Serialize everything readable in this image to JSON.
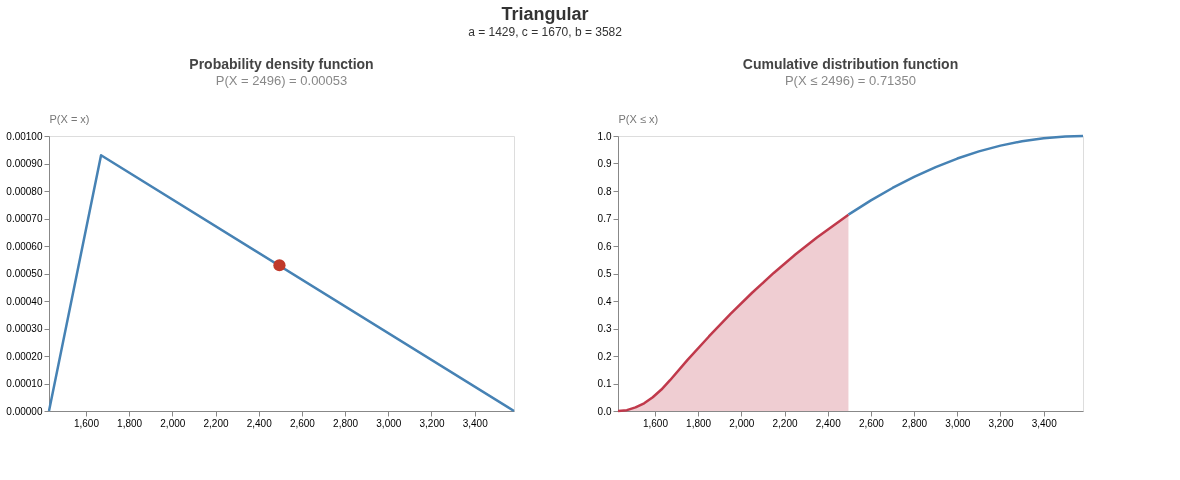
{
  "chart_data": [
    {
      "type": "line",
      "title": "Probability density function",
      "subtitle": "P(X = 2496) = 0.00053",
      "ylabel": "P(X = x)",
      "annotations": [
        "Triangular",
        "a = 1429, c = 1670, b = 3582"
      ],
      "xlim": [
        1429,
        3582
      ],
      "xticks": [
        {
          "value": 1600,
          "label": "1,600"
        },
        {
          "value": 1800,
          "label": "1,800"
        },
        {
          "value": 2000,
          "label": "2,000"
        },
        {
          "value": 2200,
          "label": "2,200"
        },
        {
          "value": 2400,
          "label": "2,400"
        },
        {
          "value": 2600,
          "label": "2,600"
        },
        {
          "value": 2800,
          "label": "2,800"
        },
        {
          "value": 3000,
          "label": "3,000"
        },
        {
          "value": 3200,
          "label": "3,200"
        },
        {
          "value": 3400,
          "label": "3,400"
        }
      ],
      "ylim": [
        0,
        0.001
      ],
      "yticks": [
        {
          "value": 0,
          "label": "0.00000"
        },
        {
          "value": 0.0001,
          "label": "0.00010"
        },
        {
          "value": 0.0002,
          "label": "0.00020"
        },
        {
          "value": 0.0003,
          "label": "0.00030"
        },
        {
          "value": 0.0004,
          "label": "0.00040"
        },
        {
          "value": 0.0005,
          "label": "0.00050"
        },
        {
          "value": 0.0006,
          "label": "0.00060"
        },
        {
          "value": 0.0007,
          "label": "0.00070"
        },
        {
          "value": 0.0008,
          "label": "0.00080"
        },
        {
          "value": 0.0009,
          "label": "0.00090"
        },
        {
          "value": 0.001,
          "label": "0.00100"
        }
      ],
      "grid": false,
      "series": [
        {
          "color": "#4682b4",
          "x": [
            1429,
            1670,
            3582
          ],
          "values": [
            0,
            0.00093,
            0
          ]
        },
        {
          "type": "scatter",
          "marker": "circle",
          "color": "#c0392b",
          "x": [
            2496
          ],
          "values": [
            0.00053
          ]
        }
      ]
    },
    {
      "type": "line",
      "title": "Cumulative distribution function",
      "subtitle": "P(X ≤ 2496) = 0.71350",
      "ylabel": "P(X ≤ x)",
      "xlim": [
        1429,
        3582
      ],
      "xticks": [
        {
          "value": 1600,
          "label": "1,600"
        },
        {
          "value": 1800,
          "label": "1,800"
        },
        {
          "value": 2000,
          "label": "2,000"
        },
        {
          "value": 2200,
          "label": "2,200"
        },
        {
          "value": 2400,
          "label": "2,400"
        },
        {
          "value": 2600,
          "label": "2,600"
        },
        {
          "value": 2800,
          "label": "2,800"
        },
        {
          "value": 3000,
          "label": "3,000"
        },
        {
          "value": 3200,
          "label": "3,200"
        },
        {
          "value": 3400,
          "label": "3,400"
        }
      ],
      "ylim": [
        0,
        1
      ],
      "yticks": [
        {
          "value": 0,
          "label": "0.0"
        },
        0.1,
        0.2,
        0.3,
        0.4,
        0.5,
        0.6,
        0.7,
        0.8,
        0.9,
        {
          "value": 1,
          "label": "1.0"
        }
      ],
      "grid": false,
      "series": [
        {
          "type": "area",
          "color": "#c0394b",
          "x": [
            1429,
            1470,
            1510,
            1550,
            1590,
            1630,
            1670,
            1750,
            1850,
            1950,
            2050,
            2150,
            2250,
            2350,
            2496
          ],
          "values": [
            0,
            0.003,
            0.013,
            0.028,
            0.05,
            0.078,
            0.112,
            0.185,
            0.271,
            0.353,
            0.43,
            0.502,
            0.569,
            0.631,
            0.714
          ]
        },
        {
          "color": "#4682b4",
          "x": [
            2496,
            2600,
            2700,
            2800,
            2900,
            3000,
            3100,
            3200,
            3300,
            3400,
            3500,
            3582
          ],
          "values": [
            0.714,
            0.766,
            0.811,
            0.851,
            0.887,
            0.918,
            0.944,
            0.965,
            0.981,
            0.992,
            0.998,
            1
          ]
        }
      ]
    }
  ]
}
